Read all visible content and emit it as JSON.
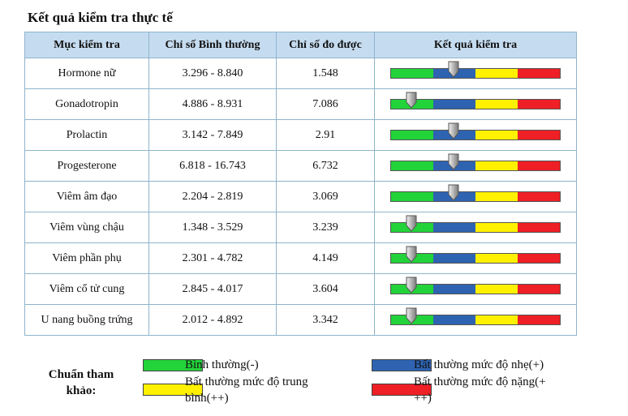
{
  "title": "Kết quả kiểm tra thực tế",
  "table": {
    "headers": [
      "Mục kiểm tra",
      "Chỉ số Bình thường",
      "Chỉ số đo được",
      "Kết quả kiểm tra"
    ],
    "rows": [
      {
        "name": "Hormone nữ",
        "normal": "3.296 - 8.840",
        "measured": "1.548",
        "level_index": 1
      },
      {
        "name": "Gonadotropin",
        "normal": "4.886 - 8.931",
        "measured": "7.086",
        "level_index": 0
      },
      {
        "name": "Prolactin",
        "normal": "3.142 - 7.849",
        "measured": "2.91",
        "level_index": 1
      },
      {
        "name": "Progesterone",
        "normal": "6.818 - 16.743",
        "measured": "6.732",
        "level_index": 1
      },
      {
        "name": "Viêm âm đạo",
        "normal": "2.204 - 2.819",
        "measured": "3.069",
        "level_index": 1
      },
      {
        "name": "Viêm vùng chậu",
        "normal": "1.348 - 3.529",
        "measured": "3.239",
        "level_index": 0
      },
      {
        "name": "Viêm phần phụ",
        "normal": "2.301 - 4.782",
        "measured": "4.149",
        "level_index": 0
      },
      {
        "name": "Viêm cổ tử cung",
        "normal": "2.845 - 4.017",
        "measured": "3.604",
        "level_index": 0
      },
      {
        "name": "U nang buồng trứng",
        "normal": "2.012 - 4.892",
        "measured": "3.342",
        "level_index": 0
      }
    ]
  },
  "legend": {
    "title_line1": "Chuẩn tham",
    "title_line2": "khảo:",
    "items": [
      {
        "label": "Bình thường(-)",
        "color": "#23d33a"
      },
      {
        "label": "Bất thường mức độ nhẹ(+)",
        "color": "#2e63b1"
      },
      {
        "label_line1": "Bất thường mức độ trung",
        "label_line2": "bình(++)",
        "color": "#fff100"
      },
      {
        "label_line1": "Bất thường mức độ nặng(+",
        "label_line2": "++)",
        "color": "#ee1f25"
      }
    ]
  },
  "colors": {
    "header_bg": "#c5dcf0",
    "border": "#8fb4cc",
    "green": "#23d33a",
    "blue": "#2e63b1",
    "yellow": "#fff100",
    "red": "#ee1f25"
  }
}
